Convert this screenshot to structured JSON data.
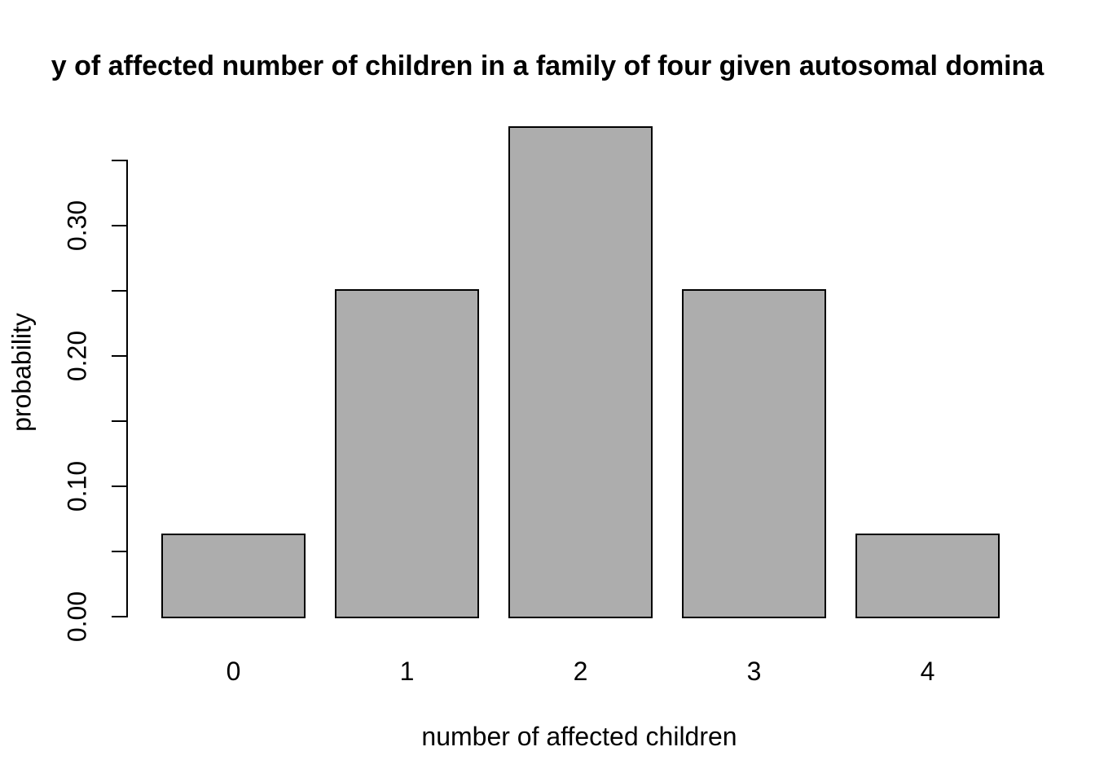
{
  "chart_data": {
    "type": "bar",
    "title": "y of affected number of children in a family of four given autosomal domina",
    "xlabel": "number of affected children",
    "ylabel": "probability",
    "categories": [
      "0",
      "1",
      "2",
      "3",
      "4"
    ],
    "values": [
      0.0625,
      0.25,
      0.375,
      0.25,
      0.0625
    ],
    "ylim": [
      0,
      0.35
    ],
    "ytick_step": 0.05,
    "ytick_labels": [
      "0.00",
      "0.10",
      "0.20",
      "0.30"
    ],
    "ytick_label_values": [
      0.0,
      0.1,
      0.2,
      0.3
    ],
    "grid": false,
    "legend": "none",
    "bar_fill_color": "#adadad",
    "bar_border_color": "#000000",
    "axis_color": "#000000",
    "text_color": "#000000",
    "background_color": "#ffffff"
  }
}
